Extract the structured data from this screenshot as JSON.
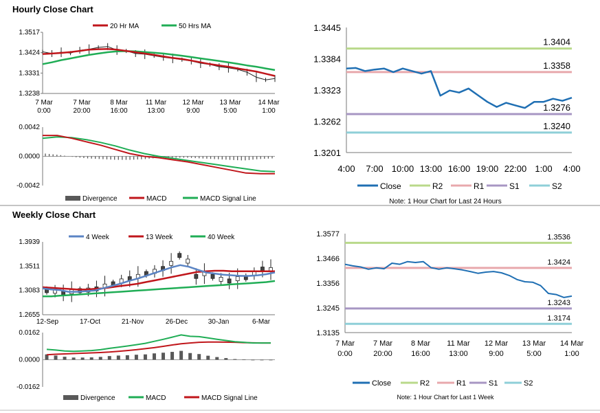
{
  "colors": {
    "red": "#c0161b",
    "green": "#1fad55",
    "blue": "#5b84c4",
    "close": "#1f6fb3",
    "r2": "#b9d98a",
    "r1": "#e8a8ac",
    "s1": "#a796c3",
    "s2": "#8ecfd8",
    "gray": "#595959"
  },
  "sections": {
    "hourly_title": "Hourly Close Chart",
    "weekly_title": "Weekly Close Chart"
  },
  "chart_data": [
    {
      "id": "hourly_price",
      "type": "line",
      "title": "Hourly Close Chart",
      "legend": [
        "20 Hr MA",
        "50 Hrs MA"
      ],
      "yticks": [
        "1.3517",
        "1.3424",
        "1.3331",
        "1.3238"
      ],
      "xticks": [
        [
          "7 Mar",
          "0:00"
        ],
        [
          "7 Mar",
          "20:00"
        ],
        [
          "8 Mar",
          "16:00"
        ],
        [
          "11 Mar",
          "13:00"
        ],
        [
          "12 Mar",
          "9:00"
        ],
        [
          "13 Mar",
          "5:00"
        ],
        [
          "14 Mar",
          "1:00"
        ]
      ],
      "ylim": [
        1.3238,
        1.3517
      ],
      "series": [
        {
          "name": "Price",
          "values": [
            1.3428,
            1.342,
            1.3426,
            1.3422,
            1.3435,
            1.344,
            1.3448,
            1.3452,
            1.3436,
            1.3432,
            1.342,
            1.3417,
            1.341,
            1.3403,
            1.3398,
            1.3392,
            1.3386,
            1.3376,
            1.337,
            1.336,
            1.3355,
            1.3348,
            1.3335,
            1.3312,
            1.33,
            1.3306
          ]
        },
        {
          "name": "20 Hr MA",
          "values": [
            1.3418,
            1.342,
            1.3423,
            1.3427,
            1.3432,
            1.3438,
            1.344,
            1.3441,
            1.3438,
            1.3432,
            1.3426,
            1.342,
            1.3414,
            1.3407,
            1.34,
            1.3395,
            1.3388,
            1.338,
            1.3372,
            1.3366,
            1.336,
            1.3352,
            1.3345,
            1.3338,
            1.3328,
            1.3318
          ]
        },
        {
          "name": "50 Hrs MA",
          "values": [
            1.3372,
            1.338,
            1.339,
            1.3398,
            1.3406,
            1.3414,
            1.342,
            1.3426,
            1.343,
            1.3431,
            1.343,
            1.3427,
            1.3424,
            1.342,
            1.3415,
            1.341,
            1.3404,
            1.3398,
            1.3392,
            1.3386,
            1.338,
            1.3373,
            1.3366,
            1.336,
            1.3352,
            1.3345
          ]
        }
      ]
    },
    {
      "id": "hourly_macd",
      "type": "line",
      "yticks": [
        "0.0042",
        "0.0000",
        "-0.0042"
      ],
      "ylim": [
        -0.0042,
        0.0042
      ],
      "legend": [
        "Divergence",
        "MACD",
        "MACD Signal Line"
      ],
      "series": [
        {
          "name": "MACD",
          "values": [
            0.003,
            0.003,
            0.0026,
            0.0021,
            0.0016,
            0.001,
            0.0004,
            0.0,
            -0.0002,
            -0.0005,
            -0.0008,
            -0.0012,
            -0.0016,
            -0.002,
            -0.0024,
            -0.0025,
            -0.0025
          ]
        },
        {
          "name": "MACD Signal Line",
          "values": [
            0.0026,
            0.0028,
            0.0027,
            0.0024,
            0.002,
            0.0015,
            0.0009,
            0.0004,
            0.0,
            -0.0003,
            -0.0006,
            -0.0009,
            -0.0012,
            -0.0015,
            -0.0018,
            -0.0021,
            -0.0022
          ]
        },
        {
          "name": "Divergence",
          "values": [
            0.0004,
            0.0002,
            -0.0001,
            -0.0003,
            -0.0004,
            -0.0005,
            -0.0005,
            -0.0004,
            -0.0002,
            -0.0002,
            -0.0002,
            -0.0003,
            -0.0004,
            -0.0005,
            -0.0006,
            -0.0004,
            -0.0003
          ]
        }
      ]
    },
    {
      "id": "hourly_close",
      "type": "line",
      "yticks": [
        "1.3445",
        "1.3384",
        "1.3323",
        "1.3262",
        "1.3201"
      ],
      "ylim": [
        1.3201,
        1.3445
      ],
      "xticks": [
        "4:00",
        "7:00",
        "10:00",
        "13:00",
        "16:00",
        "19:00",
        "22:00",
        "1:00",
        "4:00"
      ],
      "levels": [
        {
          "name": "R2",
          "value": 1.3404,
          "label": "1.3404"
        },
        {
          "name": "R1",
          "value": 1.3358,
          "label": "1.3358"
        },
        {
          "name": "S1",
          "value": 1.3276,
          "label": "1.3276"
        },
        {
          "name": "S2",
          "value": 1.324,
          "label": "1.3240"
        }
      ],
      "series": [
        {
          "name": "Close",
          "values": [
            1.3365,
            1.3366,
            1.336,
            1.3363,
            1.3365,
            1.3358,
            1.3365,
            1.336,
            1.3355,
            1.336,
            1.3312,
            1.3322,
            1.3318,
            1.3326,
            1.3313,
            1.33,
            1.329,
            1.3298,
            1.3293,
            1.3288,
            1.33,
            1.33,
            1.3306,
            1.3302,
            1.3308
          ]
        }
      ],
      "legend": [
        "Close",
        "R2",
        "R1",
        "S1",
        "S2"
      ],
      "note": "Note: 1 Hour Chart for Last 24 Hours"
    },
    {
      "id": "weekly_price",
      "type": "line",
      "title": "Weekly Close Chart",
      "legend": [
        "4 Week",
        "13 Week",
        "40 Week"
      ],
      "yticks": [
        "1.3939",
        "1.3511",
        "1.3083",
        "1.2655"
      ],
      "ylim": [
        1.2655,
        1.3939
      ],
      "xticks": [
        "12-Sep",
        "17-Oct",
        "21-Nov",
        "26-Dec",
        "30-Jan",
        "6-Mar"
      ],
      "series": [
        {
          "name": "Price",
          "values": [
            1.308,
            1.307,
            1.304,
            1.306,
            1.308,
            1.309,
            1.311,
            1.316,
            1.32,
            1.325,
            1.329,
            1.333,
            1.338,
            1.342,
            1.347,
            1.356,
            1.37,
            1.36,
            1.333,
            1.338,
            1.333,
            1.328,
            1.325,
            1.329,
            1.331,
            1.338,
            1.346,
            1.345
          ]
        },
        {
          "name": "4 Week",
          "values": [
            1.312,
            1.31,
            1.309,
            1.306,
            1.306,
            1.307,
            1.308,
            1.312,
            1.316,
            1.32,
            1.325,
            1.329,
            1.334,
            1.339,
            1.344,
            1.349,
            1.353,
            1.35,
            1.345,
            1.34,
            1.338,
            1.336,
            1.335,
            1.334,
            1.334,
            1.335,
            1.337,
            1.34
          ]
        },
        {
          "name": "13 Week",
          "values": [
            1.314,
            1.313,
            1.312,
            1.311,
            1.31,
            1.31,
            1.311,
            1.312,
            1.314,
            1.316,
            1.318,
            1.32,
            1.323,
            1.326,
            1.329,
            1.332,
            1.335,
            1.338,
            1.341,
            1.342,
            1.343,
            1.343,
            1.342,
            1.342,
            1.342,
            1.342,
            1.342,
            1.342
          ]
        },
        {
          "name": "40 Week",
          "values": [
            1.298,
            1.298,
            1.299,
            1.3,
            1.301,
            1.302,
            1.303,
            1.304,
            1.305,
            1.306,
            1.307,
            1.308,
            1.309,
            1.31,
            1.311,
            1.312,
            1.313,
            1.314,
            1.315,
            1.316,
            1.317,
            1.318,
            1.319,
            1.32,
            1.321,
            1.322,
            1.323,
            1.325
          ]
        }
      ]
    },
    {
      "id": "weekly_macd",
      "type": "line",
      "yticks": [
        "0.0162",
        "0.0000",
        "-0.0162"
      ],
      "ylim": [
        -0.0162,
        0.0162
      ],
      "legend": [
        "Divergence",
        "MACD",
        "MACD Signal Line"
      ],
      "series": [
        {
          "name": "MACD",
          "values": [
            0.0062,
            0.0058,
            0.0052,
            0.005,
            0.0052,
            0.0055,
            0.006,
            0.0068,
            0.0075,
            0.0082,
            0.009,
            0.0098,
            0.011,
            0.0122,
            0.0135,
            0.0148,
            0.014,
            0.0138,
            0.013,
            0.0122,
            0.0115,
            0.0108,
            0.0104,
            0.01,
            0.01,
            0.01
          ]
        },
        {
          "name": "MACD Signal Line",
          "values": [
            0.003,
            0.0033,
            0.0035,
            0.0037,
            0.0039,
            0.0041,
            0.0043,
            0.0046,
            0.005,
            0.0055,
            0.006,
            0.0066,
            0.0072,
            0.008,
            0.0088,
            0.0095,
            0.01,
            0.0104,
            0.0106,
            0.0106,
            0.0105,
            0.0104,
            0.0102,
            0.0101,
            0.01,
            0.01
          ]
        },
        {
          "name": "Divergence",
          "values": [
            0.0032,
            0.0025,
            0.0018,
            0.0013,
            0.0013,
            0.0014,
            0.0017,
            0.0022,
            0.0025,
            0.0027,
            0.003,
            0.0032,
            0.0038,
            0.0042,
            0.0047,
            0.0053,
            0.004,
            0.0034,
            0.0024,
            0.0016,
            0.001,
            0.0004,
            0.0002,
            -0.0001,
            0.0,
            0.0
          ]
        }
      ]
    },
    {
      "id": "weekly_close",
      "type": "line",
      "yticks": [
        "1.3577",
        "1.3466",
        "1.3356",
        "1.3245",
        "1.3135"
      ],
      "ylim": [
        1.3135,
        1.3577
      ],
      "xticks": [
        [
          "7 Mar",
          "0:00"
        ],
        [
          "7 Mar",
          "20:00"
        ],
        [
          "8 Mar",
          "16:00"
        ],
        [
          "11 Mar",
          "13:00"
        ],
        [
          "12 Mar",
          "9:00"
        ],
        [
          "13 Mar",
          "5:00"
        ],
        [
          "14 Mar",
          "1:00"
        ]
      ],
      "levels": [
        {
          "name": "R2",
          "value": 1.3536,
          "label": "1.3536"
        },
        {
          "name": "R1",
          "value": 1.3424,
          "label": "1.3424"
        },
        {
          "name": "S1",
          "value": 1.3243,
          "label": "1.3243"
        },
        {
          "name": "S2",
          "value": 1.3174,
          "label": "1.3174"
        }
      ],
      "series": [
        {
          "name": "Close",
          "values": [
            1.344,
            1.3433,
            1.3428,
            1.3418,
            1.3424,
            1.342,
            1.3445,
            1.344,
            1.3452,
            1.3448,
            1.3452,
            1.3425,
            1.3418,
            1.3424,
            1.342,
            1.3415,
            1.3408,
            1.34,
            1.3405,
            1.3408,
            1.3402,
            1.339,
            1.3372,
            1.3362,
            1.336,
            1.3345,
            1.331,
            1.3305,
            1.3292,
            1.3298
          ]
        }
      ],
      "legend": [
        "Close",
        "R2",
        "R1",
        "S1",
        "S2"
      ],
      "note": "Note: 1 Hour Chart for Last 1 Week"
    }
  ]
}
